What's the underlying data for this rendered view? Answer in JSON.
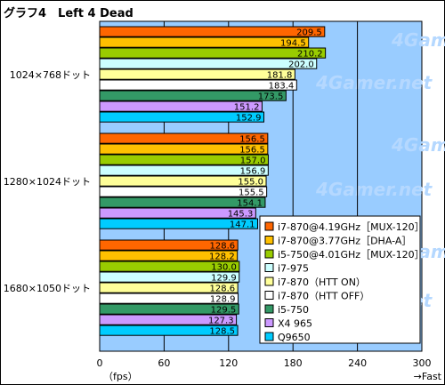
{
  "chart_data": {
    "type": "bar",
    "orientation": "horizontal",
    "title": "グラフ4　Left 4 Dead",
    "xlabel": "（fps）",
    "xlabel_right": "→Fast",
    "xlim": [
      0,
      300
    ],
    "xticks": [
      "0",
      "60",
      "120",
      "180",
      "240",
      "300"
    ],
    "categories": [
      "1024×768ドット",
      "1280×1024ドット",
      "1680×1050ドット"
    ],
    "series": [
      {
        "name": "i7-870@4.19GHz［MUX-120］",
        "color": "#ff6600",
        "values": [
          209.5,
          156.5,
          128.6
        ]
      },
      {
        "name": "i7-870@3.77GHz［DHA-A］",
        "color": "#ffc000",
        "values": [
          194.5,
          156.5,
          128.2
        ]
      },
      {
        "name": "i5-750@4.01GHz［MUX-120］",
        "color": "#99cc00",
        "values": [
          210.2,
          157.0,
          130.0
        ]
      },
      {
        "name": "i7-975",
        "color": "#ccffff",
        "values": [
          202.0,
          156.9,
          129.9
        ]
      },
      {
        "name": "i7-870（HTT ON）",
        "color": "#ffff99",
        "values": [
          181.8,
          155.0,
          128.6
        ]
      },
      {
        "name": "i7-870（HTT OFF）",
        "color": "#ffffff",
        "values": [
          183.4,
          155.5,
          128.9
        ]
      },
      {
        "name": "i5-750",
        "color": "#339966",
        "values": [
          173.5,
          154.1,
          129.5
        ]
      },
      {
        "name": "X4 965",
        "color": "#cc99ff",
        "values": [
          151.2,
          145.3,
          127.3
        ]
      },
      {
        "name": "Q9650",
        "color": "#00ccff",
        "values": [
          152.9,
          147.1,
          128.5
        ]
      }
    ],
    "grid": true,
    "legend_position": "bottom-right",
    "watermark": "4Gamer.net"
  }
}
